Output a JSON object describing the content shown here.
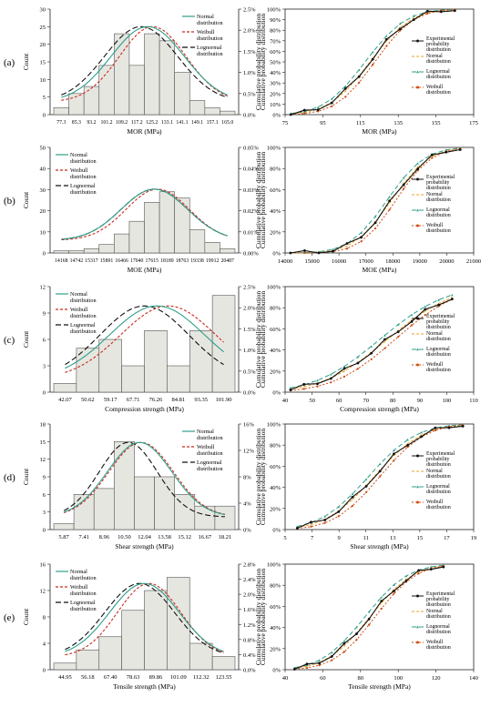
{
  "colors": {
    "bar_fill": "#e6e6e0",
    "bar_stroke": "#555555",
    "normal": "#2e9e8a",
    "weibull": "#cc2a1e",
    "lognormal": "#111111",
    "experimental": "#111111",
    "cdf_normal": "#e8a020",
    "cdf_lognormal": "#2e9e8a",
    "cdf_weibull": "#cc4a10"
  },
  "rows": [
    {
      "label": "(a)",
      "hist": {
        "type": "bar",
        "ylabel": "Count",
        "xlabel": "MOR (MPa)",
        "ylim": [
          0,
          30
        ],
        "yticks": [
          "0",
          "5",
          "10",
          "15",
          "20",
          "25",
          "30"
        ],
        "y2ticks": [
          "0.0%",
          "0.5%",
          "1.0%",
          "1.5%",
          "2.0%",
          "2.5%"
        ],
        "y2label": "Cumulative probability distribution",
        "categories": [
          "77.3",
          "85.3",
          "93.2",
          "101.2",
          "109.2",
          "117.2",
          "125.2",
          "133.1",
          "141.1",
          "149.1",
          "157.1",
          "165.0"
        ],
        "values": [
          2,
          6,
          8,
          14,
          23,
          14,
          23,
          21,
          12,
          4,
          2,
          1
        ],
        "curves": {
          "normal": [
            0.52,
            0.22
          ],
          "weibull": [
            0.55,
            0.2
          ],
          "lognormal": [
            0.48,
            0.22
          ]
        },
        "curve_peak": 0.84,
        "legend": [
          "Normal distribution",
          "Weibull distribution",
          "Lognormal distribution"
        ]
      },
      "cdf": {
        "type": "line",
        "ylabel": "Cumulative probability distribution",
        "xlabel": "MOR (MPa)",
        "xticks": [
          "75",
          "95",
          "115",
          "135",
          "155",
          "175"
        ],
        "xlim": [
          75,
          175
        ],
        "yticks": [
          "0%",
          "10%",
          "20%",
          "30%",
          "40%",
          "50%",
          "60%",
          "70%",
          "80%",
          "90%",
          "100%"
        ],
        "mu": 120,
        "sigma": 17,
        "xmin": 78,
        "xmax": 165,
        "legend": [
          "Experimental probability distribution",
          "Normal distribution",
          "Lognormal distribution",
          "Weibull distribution"
        ]
      }
    },
    {
      "label": "(b)",
      "hist": {
        "type": "bar",
        "ylabel": "Count",
        "xlabel": "MOE (MPa)",
        "ylim": [
          0,
          50
        ],
        "yticks": [
          "0",
          "10",
          "20",
          "30",
          "40",
          "50"
        ],
        "y2ticks": [
          "0.00%",
          "0.01%",
          "0.02%",
          "0.03%",
          "0.04%",
          "0.05%"
        ],
        "y2label": "Cumulative probability distribution",
        "categories": [
          "14168",
          "14742",
          "15317",
          "15891",
          "16466",
          "17040",
          "17615",
          "18189",
          "18763",
          "19338",
          "19912",
          "20487"
        ],
        "values": [
          1,
          1,
          2,
          4,
          9,
          15,
          24,
          29,
          26,
          11,
          5,
          2
        ],
        "curves": {
          "normal": [
            0.56,
            0.2
          ],
          "weibull": [
            0.58,
            0.19
          ],
          "lognormal": [
            0.56,
            0.2
          ]
        },
        "curve_peak": 0.57,
        "legend": [
          "Normal distribution",
          "Weibull distribution",
          "Lognormal distribution"
        ]
      },
      "cdf": {
        "type": "line",
        "ylabel": "Cumulative probability distribution",
        "xlabel": "MOE (MPa)",
        "xticks": [
          "14000",
          "15000",
          "16000",
          "17000",
          "18000",
          "19000",
          "20000",
          "21000"
        ],
        "xlim": [
          14000,
          21000
        ],
        "yticks": [
          "0%",
          "20%",
          "40%",
          "60%",
          "80%",
          "100%"
        ],
        "mu": 17950,
        "sigma": 1100,
        "xmin": 14200,
        "xmax": 20500,
        "legend": [
          "Experimental probability distribution",
          "Normal distribution",
          "Lognormal distribution",
          "Weibull distribution"
        ]
      }
    },
    {
      "label": "(c)",
      "hist": {
        "type": "bar",
        "ylabel": "Count",
        "xlabel": "Compression strength (MPa)",
        "ylim": [
          0,
          12
        ],
        "yticks": [
          "0",
          "3",
          "6",
          "9",
          "12"
        ],
        "y2ticks": [
          "0.0%",
          "0.5%",
          "1.0%",
          "1.5%",
          "2.0%",
          "2.5%"
        ],
        "y2label": "Cumulative probability distribution",
        "categories": [
          "42.07",
          "50.62",
          "59.17",
          "67.71",
          "76.26",
          "84.81",
          "93.35",
          "101.90"
        ],
        "values": [
          1,
          5,
          6,
          3,
          7,
          3,
          7,
          11
        ],
        "curves": {
          "normal": [
            0.58,
            0.3
          ],
          "weibull": [
            0.65,
            0.3
          ],
          "lognormal": [
            0.5,
            0.28
          ]
        },
        "curve_peak": 0.82,
        "legend": [
          "Normal distribution",
          "Weibull distribution",
          "Lognormal distribution"
        ]
      },
      "cdf": {
        "type": "line",
        "ylabel": "Cumulative probability distribution",
        "xlabel": "Compression strength (MPa)",
        "xticks": [
          "40",
          "50",
          "60",
          "70",
          "80",
          "90",
          "100",
          "110"
        ],
        "xlim": [
          40,
          110
        ],
        "yticks": [
          "0%",
          "20%",
          "40%",
          "60%",
          "80%",
          "100%"
        ],
        "mu": 78,
        "sigma": 19,
        "xmin": 42,
        "xmax": 102,
        "legend": [
          "Experimental probability distribution",
          "Normal distribution",
          "Lognormal distribution",
          "Weibull distribution"
        ]
      }
    },
    {
      "label": "(d)",
      "hist": {
        "type": "bar",
        "ylabel": "Count",
        "xlabel": "Shear strength (MPa)",
        "ylim": [
          0,
          18
        ],
        "yticks": [
          "0",
          "3",
          "6",
          "9",
          "12",
          "15",
          "18"
        ],
        "y2ticks": [
          "0%",
          "4%",
          "8%",
          "12%",
          "16%"
        ],
        "y2label": "Cumulative probability distribution",
        "categories": [
          "5.87",
          "7.41",
          "8.96",
          "10.50",
          "12.04",
          "13.58",
          "15.12",
          "16.67",
          "18.21"
        ],
        "values": [
          1,
          6,
          7,
          15,
          9,
          9,
          6,
          4,
          4
        ],
        "curves": {
          "normal": [
            0.47,
            0.2
          ],
          "weibull": [
            0.48,
            0.2
          ],
          "lognormal": [
            0.4,
            0.18
          ]
        },
        "curve_peak": 0.83,
        "legend": [
          "Normal distribution",
          "Weibull distribution",
          "Lognormal distribution"
        ]
      },
      "cdf": {
        "type": "line",
        "ylabel": "Cumulative probability distribution",
        "xlabel": "Shear strength (MPa)",
        "xticks": [
          "5",
          "7",
          "9",
          "11",
          "13",
          "15",
          "17",
          "19"
        ],
        "xlim": [
          5,
          19
        ],
        "yticks": [
          "0%",
          "20%",
          "40%",
          "60%",
          "80%",
          "100%"
        ],
        "mu": 11.6,
        "sigma": 2.8,
        "xmin": 5.9,
        "xmax": 18.2,
        "legend": [
          "Experimental probability distribution",
          "Normal distribution",
          "Lognormal distribution",
          "Weibull distribution"
        ]
      }
    },
    {
      "label": "(e)",
      "hist": {
        "type": "bar",
        "ylabel": "Count",
        "xlabel": "Tensile strength (MPa)",
        "ylim": [
          0,
          16
        ],
        "yticks": [
          "0",
          "4",
          "8",
          "12",
          "16"
        ],
        "y2ticks": [
          "0.0%",
          "0.4%",
          "0.8%",
          "1.2%",
          "1.6%",
          "2.0%",
          "2.4%",
          "2.8%"
        ],
        "y2label": "Cumulative probability distribution",
        "categories": [
          "44.95",
          "56.18",
          "67.40",
          "78.63",
          "89.86",
          "101.09",
          "112.32",
          "123.55"
        ],
        "values": [
          1,
          3,
          5,
          9,
          12,
          14,
          4,
          2
        ],
        "curves": {
          "normal": [
            0.5,
            0.22
          ],
          "weibull": [
            0.53,
            0.2
          ],
          "lognormal": [
            0.47,
            0.22
          ]
        },
        "curve_peak": 0.82,
        "legend": [
          "Normal distribution",
          "Weibull distribution",
          "Lognormal distribution"
        ]
      },
      "cdf": {
        "type": "line",
        "ylabel": "Cumulative probability distribution",
        "xlabel": "Tensile strength (MPa)",
        "xticks": [
          "40",
          "60",
          "80",
          "100",
          "120",
          "140"
        ],
        "xlim": [
          40,
          140
        ],
        "yticks": [
          "0%",
          "20%",
          "40%",
          "60%",
          "80%",
          "100%"
        ],
        "mu": 85,
        "sigma": 18,
        "xmin": 45,
        "xmax": 124,
        "legend": [
          "Experimental probability distribution",
          "Normal distribution",
          "Lognormal distribution",
          "Weibull distribution"
        ]
      }
    }
  ],
  "chart_data": [
    {
      "type": "bar",
      "xlabel": "MOR (MPa)",
      "ylabel": "Count",
      "ylim": [
        0,
        30
      ],
      "categories": [
        "77.3",
        "85.3",
        "93.2",
        "101.2",
        "109.2",
        "117.2",
        "125.2",
        "133.1",
        "141.1",
        "149.1",
        "157.1",
        "165.0"
      ],
      "values": [
        2,
        6,
        8,
        14,
        23,
        14,
        23,
        21,
        12,
        4,
        2,
        1
      ]
    },
    {
      "type": "line",
      "xlabel": "MOR (MPa)",
      "ylabel": "Cumulative probability distribution",
      "xlim": [
        75,
        175
      ],
      "ylim": [
        0,
        1
      ]
    },
    {
      "type": "bar",
      "xlabel": "MOE (MPa)",
      "ylabel": "Count",
      "ylim": [
        0,
        50
      ],
      "categories": [
        "14168",
        "14742",
        "15317",
        "15891",
        "16466",
        "17040",
        "17615",
        "18189",
        "18763",
        "19338",
        "19912",
        "20487"
      ],
      "values": [
        1,
        1,
        2,
        4,
        9,
        15,
        24,
        29,
        26,
        11,
        5,
        2
      ]
    },
    {
      "type": "line",
      "xlabel": "MOE (MPa)",
      "ylabel": "Cumulative probability distribution",
      "xlim": [
        14000,
        21000
      ],
      "ylim": [
        0,
        1
      ]
    },
    {
      "type": "bar",
      "xlabel": "Compression strength (MPa)",
      "ylabel": "Count",
      "ylim": [
        0,
        12
      ],
      "categories": [
        "42.07",
        "50.62",
        "59.17",
        "67.71",
        "76.26",
        "84.81",
        "93.35",
        "101.90"
      ],
      "values": [
        1,
        5,
        6,
        3,
        7,
        3,
        7,
        11
      ]
    },
    {
      "type": "line",
      "xlabel": "Compression strength (MPa)",
      "ylabel": "Cumulative probability distribution",
      "xlim": [
        40,
        110
      ],
      "ylim": [
        0,
        1
      ]
    },
    {
      "type": "bar",
      "xlabel": "Shear strength (MPa)",
      "ylabel": "Count",
      "ylim": [
        0,
        18
      ],
      "categories": [
        "5.87",
        "7.41",
        "8.96",
        "10.50",
        "12.04",
        "13.58",
        "15.12",
        "16.67",
        "18.21"
      ],
      "values": [
        1,
        6,
        7,
        15,
        9,
        9,
        6,
        4,
        4
      ]
    },
    {
      "type": "line",
      "xlabel": "Shear strength (MPa)",
      "ylabel": "Cumulative probability distribution",
      "xlim": [
        5,
        19
      ],
      "ylim": [
        0,
        1
      ]
    },
    {
      "type": "bar",
      "xlabel": "Tensile strength (MPa)",
      "ylabel": "Count",
      "ylim": [
        0,
        16
      ],
      "categories": [
        "44.95",
        "56.18",
        "67.40",
        "78.63",
        "89.86",
        "101.09",
        "112.32",
        "123.55"
      ],
      "values": [
        1,
        3,
        5,
        9,
        12,
        14,
        4,
        2
      ]
    },
    {
      "type": "line",
      "xlabel": "Tensile strength (MPa)",
      "ylabel": "Cumulative probability distribution",
      "xlim": [
        40,
        140
      ],
      "ylim": [
        0,
        1
      ]
    }
  ]
}
